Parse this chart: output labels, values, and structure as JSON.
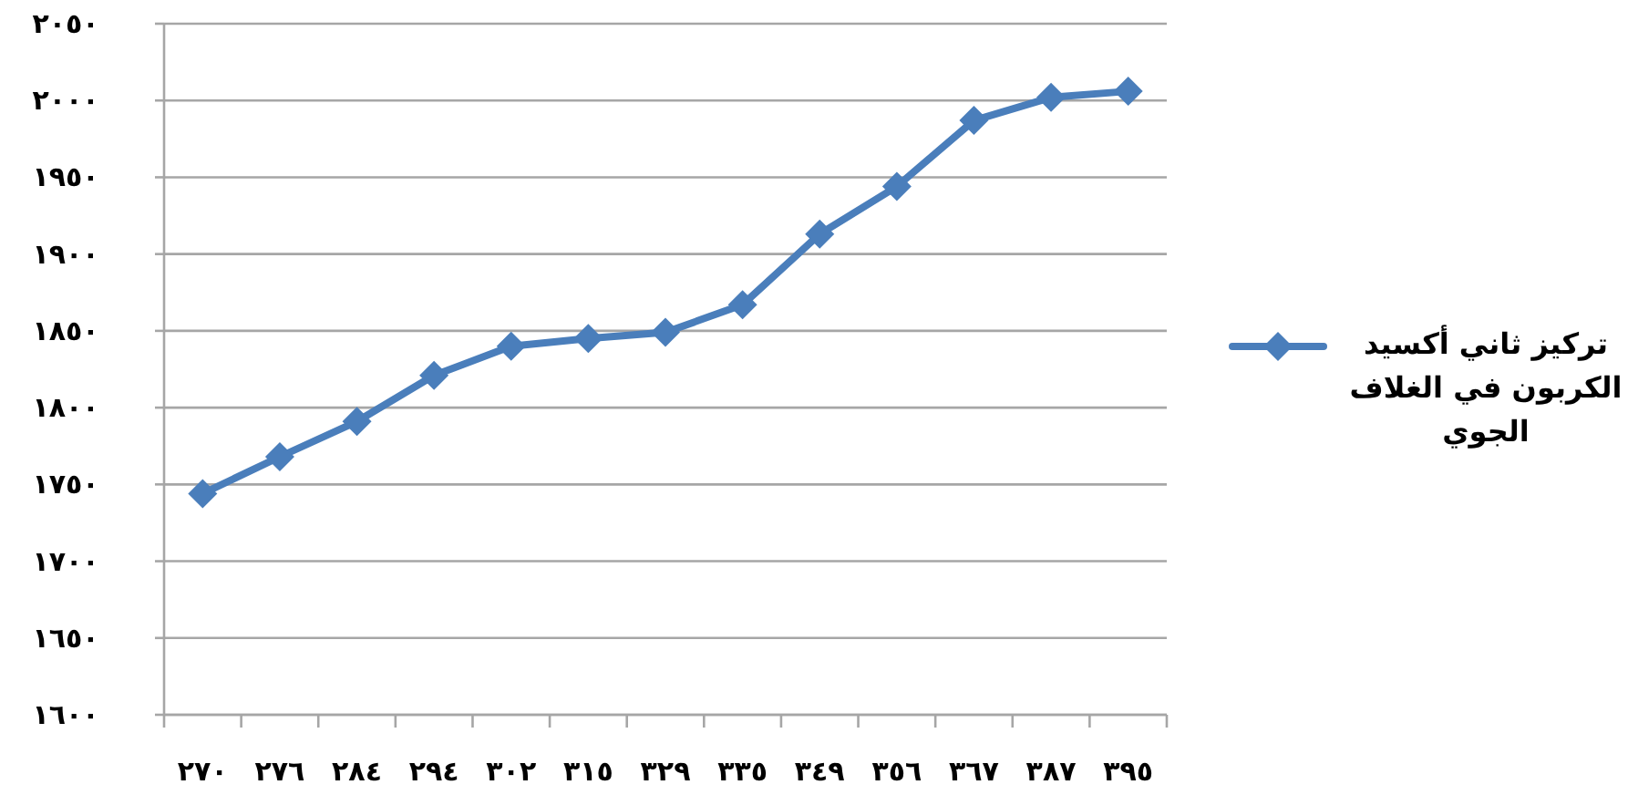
{
  "chart_data": {
    "type": "line",
    "categories": [
      "٢٧٠",
      "٢٧٦",
      "٢٨٤",
      "٢٩٤",
      "٣٠٢",
      "٣١٥",
      "٣٢٩",
      "٣٣٥",
      "٣٤٩",
      "٣٥٦",
      "٣٦٧",
      "٣٨٧",
      "٣٩٥"
    ],
    "series": [
      {
        "name": "تركيز ثاني أكسيد الكربون في الغلاف الجوي",
        "color": "#4a7ebb",
        "values": [
          1744,
          1768,
          1791,
          1821,
          1840,
          1845,
          1849,
          1867,
          1913,
          1944,
          1987,
          2002,
          2006
        ]
      }
    ],
    "ylim": [
      1600,
      2050
    ],
    "yticks": [
      {
        "value": 1600,
        "label": "١٦٠٠"
      },
      {
        "value": 1650,
        "label": "١٦٥٠"
      },
      {
        "value": 1700,
        "label": "١٧٠٠"
      },
      {
        "value": 1750,
        "label": "١٧٥٠"
      },
      {
        "value": 1800,
        "label": "١٨٠٠"
      },
      {
        "value": 1850,
        "label": "١٨٥٠"
      },
      {
        "value": 1900,
        "label": "١٩٠٠"
      },
      {
        "value": 1950,
        "label": "١٩٥٠"
      },
      {
        "value": 2000,
        "label": "٢٠٠٠"
      },
      {
        "value": 2050,
        "label": "٢٠٥٠"
      }
    ],
    "grid": "y",
    "legend": "right",
    "marker": "diamond",
    "line_style": "solid"
  }
}
